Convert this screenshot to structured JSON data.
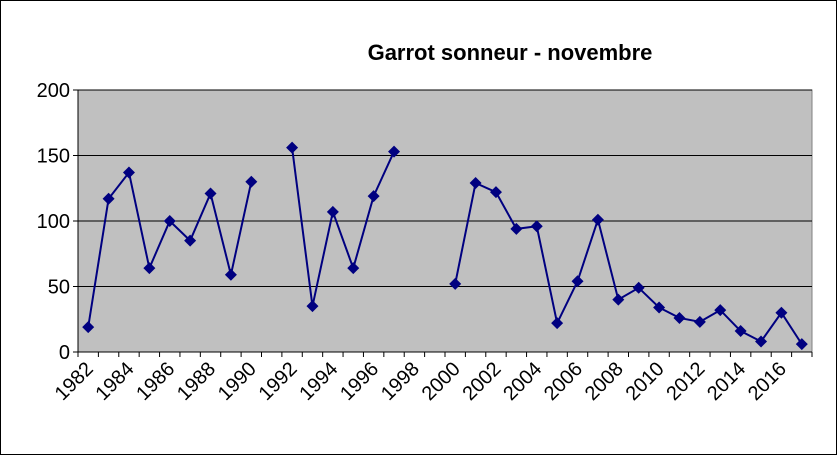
{
  "chart_data": {
    "type": "line",
    "title": "Garrot sonneur - novembre",
    "categories": [
      "1982",
      null,
      "1984",
      null,
      "1986",
      null,
      "1988",
      null,
      "1990",
      null,
      "1992",
      null,
      "1994",
      null,
      "1996",
      null,
      "1998",
      null,
      "2000",
      null,
      "2002",
      null,
      "2004",
      null,
      "2006",
      null,
      "2008",
      null,
      "2010",
      null,
      "2012",
      null,
      "2014",
      null,
      "2016",
      null
    ],
    "series": [
      {
        "name": "Garrot sonneur",
        "color": "#000080",
        "values": [
          19,
          117,
          137,
          64,
          100,
          85,
          121,
          59,
          130,
          null,
          156,
          35,
          107,
          64,
          119,
          153,
          null,
          null,
          52,
          129,
          122,
          94,
          96,
          22,
          54,
          101,
          40,
          49,
          34,
          26,
          23,
          32,
          16,
          8,
          30,
          6
        ]
      }
    ],
    "ylim": [
      0,
      200
    ],
    "yticks": [
      0,
      50,
      100,
      150,
      200
    ],
    "grid": true,
    "plot_background": "#c0c0c0"
  }
}
